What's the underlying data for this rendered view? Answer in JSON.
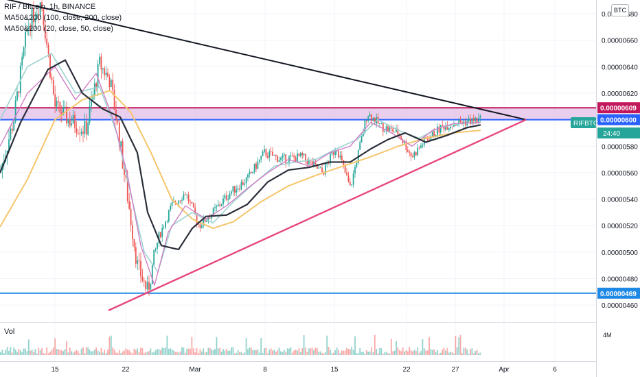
{
  "header": {
    "line1": "RIF / Bitcoin, 1h, BINANCE",
    "line2": "MA50&200 (100, close, 200, close)",
    "line3": "MA50&200 (20, close, 50, close)"
  },
  "currency_badge": "BTC",
  "volume_label": "Vol",
  "volume_axis_label": "4M",
  "symbol_tag": "RIFBTC",
  "price_tag_time": "24:40",
  "colors": {
    "up": "#26a69a",
    "down": "#ef5350",
    "resistance_line": "#131722",
    "support_line": "#e8467c",
    "zone_fill": "#e1bee7",
    "zone_border": "#c2185b",
    "level_blue": "#2962ff",
    "level_469": "#1e88e5",
    "ma_dark": "#2a2e39",
    "ma_gold": "#f5c56b",
    "ma_pink": "#d07ec5",
    "ma_teal": "#9bd3d0"
  },
  "chart_data": {
    "type": "candlestick",
    "symbol": "RIF / Bitcoin",
    "interval": "1h",
    "exchange": "BINANCE",
    "x_tick_labels": [
      "15",
      "22",
      "Mar",
      "8",
      "15",
      "22",
      "27",
      "Apr",
      "6"
    ],
    "y_tick_labels": [
      "0.00000680",
      "0.00000660",
      "0.00000640",
      "0.00000620",
      "0.00000580",
      "0.00000560",
      "0.00000540",
      "0.00000520",
      "0.00000500",
      "0.00000480",
      "0.00000460"
    ],
    "ylim": [
      4.48e-06,
      6.9e-06
    ],
    "price_labels": [
      {
        "text": "0.00000609",
        "value": 6.09e-06,
        "color": "#c2185b"
      },
      {
        "text": "0.00000600",
        "value": 6e-06,
        "color": "#2962ff"
      },
      {
        "text": "0.00000469",
        "value": 4.69e-06,
        "color": "#1e88e5"
      }
    ],
    "horizontal_levels": [
      6.09e-06,
      6e-06,
      4.69e-06
    ],
    "zone": [
      6e-06,
      6.09e-06
    ],
    "trendlines": [
      {
        "name": "resistance",
        "points": [
          [
            "Feb 9",
            6.92e-06
          ],
          [
            "Apr 2",
            6e-06
          ]
        ]
      },
      {
        "name": "support",
        "points": [
          [
            "Feb 20",
            4.56e-06
          ],
          [
            "Apr 2",
            6e-06
          ]
        ]
      }
    ],
    "moving_averages": [
      {
        "role": "ma_dark",
        "points": [
          [
            0,
            5.6e-06
          ],
          [
            30,
            5.98e-06
          ],
          [
            70,
            6.38e-06
          ],
          [
            95,
            6.45e-06
          ],
          [
            120,
            6.2e-06
          ],
          [
            150,
            6.08e-06
          ],
          [
            175,
            6.02e-06
          ],
          [
            200,
            5.75e-06
          ],
          [
            215,
            5.3e-06
          ],
          [
            235,
            5.05e-06
          ],
          [
            260,
            5.02e-06
          ],
          [
            280,
            5.18e-06
          ],
          [
            300,
            5.27e-06
          ],
          [
            330,
            5.28e-06
          ],
          [
            360,
            5.36e-06
          ],
          [
            390,
            5.53e-06
          ],
          [
            420,
            5.62e-06
          ],
          [
            450,
            5.64e-06
          ],
          [
            480,
            5.68e-06
          ],
          [
            510,
            5.68e-06
          ],
          [
            540,
            5.78e-06
          ],
          [
            565,
            5.85e-06
          ],
          [
            590,
            5.9e-06
          ],
          [
            620,
            5.83e-06
          ],
          [
            650,
            5.88e-06
          ],
          [
            680,
            5.94e-06
          ],
          [
            700,
            5.96e-06
          ]
        ]
      },
      {
        "role": "ma_gold",
        "points": [
          [
            0,
            5.19e-06
          ],
          [
            40,
            5.55e-06
          ],
          [
            80,
            6e-06
          ],
          [
            120,
            6.15e-06
          ],
          [
            160,
            6.22e-06
          ],
          [
            190,
            6.06e-06
          ],
          [
            220,
            5.75e-06
          ],
          [
            250,
            5.4e-06
          ],
          [
            280,
            5.25e-06
          ],
          [
            310,
            5.18e-06
          ],
          [
            340,
            5.23e-06
          ],
          [
            380,
            5.38e-06
          ],
          [
            420,
            5.5e-06
          ],
          [
            460,
            5.58e-06
          ],
          [
            500,
            5.65e-06
          ],
          [
            540,
            5.72e-06
          ],
          [
            580,
            5.8e-06
          ],
          [
            620,
            5.86e-06
          ],
          [
            660,
            5.9e-06
          ],
          [
            700,
            5.92e-06
          ]
        ]
      },
      {
        "role": "ma_pink",
        "points": [
          [
            0,
            5.8e-06
          ],
          [
            40,
            6.2e-06
          ],
          [
            80,
            6.4e-06
          ],
          [
            110,
            6.15e-06
          ],
          [
            140,
            6.35e-06
          ],
          [
            165,
            6e-06
          ],
          [
            185,
            5.6e-06
          ],
          [
            205,
            5.05e-06
          ],
          [
            225,
            4.75e-06
          ],
          [
            245,
            5.15e-06
          ],
          [
            270,
            5.35e-06
          ],
          [
            300,
            5.25e-06
          ],
          [
            330,
            5.35e-06
          ],
          [
            360,
            5.48e-06
          ],
          [
            390,
            5.6e-06
          ],
          [
            420,
            5.7e-06
          ],
          [
            450,
            5.65e-06
          ],
          [
            480,
            5.75e-06
          ],
          [
            510,
            5.8e-06
          ],
          [
            540,
            5.98e-06
          ],
          [
            570,
            5.9e-06
          ],
          [
            600,
            5.8e-06
          ],
          [
            630,
            5.92e-06
          ],
          [
            660,
            5.97e-06
          ],
          [
            700,
            5.98e-06
          ]
        ]
      },
      {
        "role": "ma_teal",
        "points": [
          [
            0,
            6e-06
          ],
          [
            40,
            6.4e-06
          ],
          [
            75,
            6.5e-06
          ],
          [
            110,
            6.2e-06
          ],
          [
            145,
            6.25e-06
          ],
          [
            170,
            5.9e-06
          ],
          [
            190,
            5.45e-06
          ],
          [
            210,
            5e-06
          ],
          [
            230,
            4.85e-06
          ],
          [
            250,
            5.2e-06
          ],
          [
            280,
            5.3e-06
          ],
          [
            310,
            5.22e-06
          ],
          [
            340,
            5.38e-06
          ],
          [
            370,
            5.52e-06
          ],
          [
            400,
            5.65e-06
          ],
          [
            430,
            5.68e-06
          ],
          [
            460,
            5.7e-06
          ],
          [
            490,
            5.78e-06
          ],
          [
            520,
            5.85e-06
          ],
          [
            550,
            6e-06
          ],
          [
            580,
            5.92e-06
          ],
          [
            610,
            5.86e-06
          ],
          [
            640,
            5.94e-06
          ],
          [
            670,
            5.97e-06
          ],
          [
            700,
            5.98e-06
          ]
        ]
      }
    ],
    "path_anchors": [
      [
        0,
        5.6e-06
      ],
      [
        20,
        6e-06
      ],
      [
        40,
        6.7e-06
      ],
      [
        60,
        6.9e-06
      ],
      [
        80,
        6.1e-06
      ],
      [
        100,
        6e-06
      ],
      [
        125,
        5.92e-06
      ],
      [
        145,
        6.42e-06
      ],
      [
        160,
        6.3e-06
      ],
      [
        170,
        6e-06
      ],
      [
        185,
        5.45e-06
      ],
      [
        200,
        4.9e-06
      ],
      [
        215,
        4.7e-06
      ],
      [
        230,
        5.1e-06
      ],
      [
        250,
        5.35e-06
      ],
      [
        270,
        5.45e-06
      ],
      [
        290,
        5.2e-06
      ],
      [
        310,
        5.3e-06
      ],
      [
        335,
        5.45e-06
      ],
      [
        360,
        5.55e-06
      ],
      [
        385,
        5.75e-06
      ],
      [
        410,
        5.7e-06
      ],
      [
        440,
        5.72e-06
      ],
      [
        470,
        5.6e-06
      ],
      [
        490,
        5.8e-06
      ],
      [
        510,
        5.48e-06
      ],
      [
        535,
        6.05e-06
      ],
      [
        555,
        5.95e-06
      ],
      [
        580,
        5.9e-06
      ],
      [
        600,
        5.72e-06
      ],
      [
        620,
        5.85e-06
      ],
      [
        645,
        5.95e-06
      ],
      [
        670,
        5.98e-06
      ],
      [
        700,
        6e-06
      ]
    ],
    "grid": true
  }
}
